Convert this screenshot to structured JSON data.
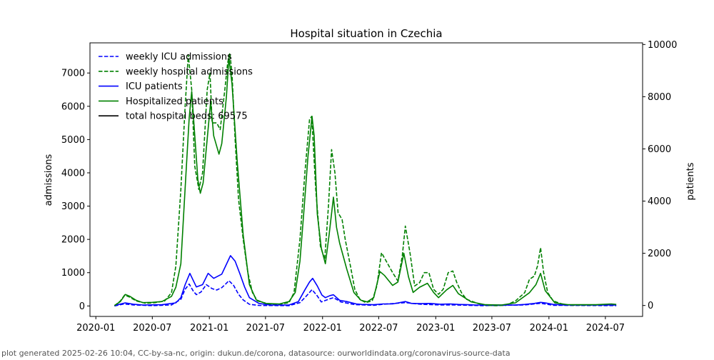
{
  "footer": "plot generated 2025-02-26 10:04, CC-by-sa-nc, origin: dukun.de/corona, datasource: ourworldindata.org/coronavirus-source-data",
  "chart_data": {
    "type": "line",
    "title": "Hospital situation in Czechia",
    "xlabel": "",
    "ylabel_left": "admissions",
    "ylabel_right": "patients",
    "xlim": [
      "2019-12-13",
      "2024-10-29"
    ],
    "ylim_left": [
      -315,
      7906
    ],
    "ylim_right": [
      -419,
      10063
    ],
    "grid": false,
    "legend_placement": "top-left",
    "x_ticks": [
      "2020-01",
      "2020-07",
      "2021-01",
      "2021-07",
      "2022-01",
      "2022-07",
      "2023-01",
      "2023-07",
      "2024-01",
      "2024-07"
    ],
    "y_ticks_left": [
      0,
      1000,
      2000,
      3000,
      4000,
      5000,
      6000,
      7000
    ],
    "y_ticks_right": [
      0,
      2000,
      4000,
      6000,
      8000,
      10000
    ],
    "legend_extra": {
      "name": "total hospital beds: 69575",
      "color": "#000000",
      "style": "solid"
    },
    "series": [
      {
        "name": "weekly ICU admissions",
        "axis": "left",
        "color": "#0000ff",
        "style": "dashed",
        "points": [
          [
            "2020-03-01",
            0
          ],
          [
            "2020-04-01",
            60
          ],
          [
            "2020-05-01",
            30
          ],
          [
            "2020-07-01",
            10
          ],
          [
            "2020-09-01",
            30
          ],
          [
            "2020-10-01",
            200
          ],
          [
            "2020-10-15",
            500
          ],
          [
            "2020-10-28",
            660
          ],
          [
            "2020-11-10",
            450
          ],
          [
            "2020-11-20",
            340
          ],
          [
            "2020-12-05",
            420
          ],
          [
            "2020-12-22",
            640
          ],
          [
            "2021-01-10",
            520
          ],
          [
            "2021-01-25",
            480
          ],
          [
            "2021-02-10",
            550
          ],
          [
            "2021-02-25",
            680
          ],
          [
            "2021-03-05",
            760
          ],
          [
            "2021-03-20",
            620
          ],
          [
            "2021-04-05",
            350
          ],
          [
            "2021-04-20",
            180
          ],
          [
            "2021-05-10",
            50
          ],
          [
            "2021-06-10",
            15
          ],
          [
            "2021-09-15",
            10
          ],
          [
            "2021-10-20",
            100
          ],
          [
            "2021-11-10",
            300
          ],
          [
            "2021-11-28",
            490
          ],
          [
            "2021-12-15",
            300
          ],
          [
            "2021-12-28",
            120
          ],
          [
            "2022-01-20",
            200
          ],
          [
            "2022-02-05",
            250
          ],
          [
            "2022-03-01",
            120
          ],
          [
            "2022-04-15",
            40
          ],
          [
            "2022-06-15",
            20
          ],
          [
            "2022-07-15",
            50
          ],
          [
            "2022-09-25",
            100
          ],
          [
            "2022-11-15",
            50
          ],
          [
            "2023-01-15",
            30
          ],
          [
            "2023-03-01",
            30
          ],
          [
            "2023-06-01",
            10
          ],
          [
            "2023-10-15",
            30
          ],
          [
            "2023-12-05",
            80
          ],
          [
            "2024-01-15",
            20
          ],
          [
            "2024-08-05",
            10
          ]
        ]
      },
      {
        "name": "weekly hospital admissions",
        "axis": "left",
        "color": "#008000",
        "style": "dashed",
        "points": [
          [
            "2020-03-01",
            0
          ],
          [
            "2020-03-20",
            150
          ],
          [
            "2020-04-03",
            330
          ],
          [
            "2020-04-20",
            260
          ],
          [
            "2020-05-10",
            150
          ],
          [
            "2020-06-10",
            80
          ],
          [
            "2020-07-10",
            100
          ],
          [
            "2020-08-10",
            150
          ],
          [
            "2020-09-01",
            400
          ],
          [
            "2020-09-15",
            1200
          ],
          [
            "2020-10-01",
            3500
          ],
          [
            "2020-10-15",
            6000
          ],
          [
            "2020-10-25",
            7550
          ],
          [
            "2020-11-05",
            6500
          ],
          [
            "2020-11-15",
            4200
          ],
          [
            "2020-11-28",
            3500
          ],
          [
            "2020-12-10",
            4000
          ],
          [
            "2020-12-25",
            6500
          ],
          [
            "2021-01-03",
            7000
          ],
          [
            "2021-01-10",
            5500
          ],
          [
            "2021-01-25",
            5500
          ],
          [
            "2021-02-05",
            5300
          ],
          [
            "2021-02-20",
            6500
          ],
          [
            "2021-03-01",
            7300
          ],
          [
            "2021-03-08",
            7600
          ],
          [
            "2021-03-15",
            7000
          ],
          [
            "2021-03-25",
            5000
          ],
          [
            "2021-04-05",
            3200
          ],
          [
            "2021-04-20",
            2000
          ],
          [
            "2021-05-05",
            1000
          ],
          [
            "2021-05-20",
            400
          ],
          [
            "2021-06-05",
            150
          ],
          [
            "2021-07-15",
            50
          ],
          [
            "2021-08-15",
            50
          ],
          [
            "2021-09-15",
            100
          ],
          [
            "2021-10-01",
            400
          ],
          [
            "2021-10-20",
            2000
          ],
          [
            "2021-11-05",
            4000
          ],
          [
            "2021-11-20",
            5600
          ],
          [
            "2021-11-27",
            5700
          ],
          [
            "2021-12-10",
            3500
          ],
          [
            "2021-12-25",
            1800
          ],
          [
            "2022-01-08",
            1400
          ],
          [
            "2022-01-20",
            3000
          ],
          [
            "2022-01-30",
            4700
          ],
          [
            "2022-02-10",
            4000
          ],
          [
            "2022-02-20",
            2800
          ],
          [
            "2022-03-05",
            2600
          ],
          [
            "2022-03-15",
            2000
          ],
          [
            "2022-04-01",
            1200
          ],
          [
            "2022-04-15",
            500
          ],
          [
            "2022-05-01",
            200
          ],
          [
            "2022-05-20",
            100
          ],
          [
            "2022-06-10",
            150
          ],
          [
            "2022-06-25",
            600
          ],
          [
            "2022-07-10",
            1600
          ],
          [
            "2022-07-25",
            1350
          ],
          [
            "2022-08-15",
            1000
          ],
          [
            "2022-09-01",
            750
          ],
          [
            "2022-09-15",
            1500
          ],
          [
            "2022-09-25",
            2400
          ],
          [
            "2022-10-10",
            1600
          ],
          [
            "2022-10-25",
            600
          ],
          [
            "2022-11-10",
            700
          ],
          [
            "2022-11-25",
            1000
          ],
          [
            "2022-12-10",
            1000
          ],
          [
            "2022-12-25",
            500
          ],
          [
            "2023-01-10",
            350
          ],
          [
            "2023-01-25",
            500
          ],
          [
            "2023-02-10",
            1000
          ],
          [
            "2023-02-25",
            1050
          ],
          [
            "2023-03-10",
            700
          ],
          [
            "2023-03-25",
            400
          ],
          [
            "2023-04-10",
            200
          ],
          [
            "2023-05-15",
            80
          ],
          [
            "2023-06-10",
            20
          ],
          [
            "2023-07-15",
            10
          ],
          [
            "2023-08-15",
            20
          ],
          [
            "2023-09-15",
            150
          ],
          [
            "2023-10-15",
            400
          ],
          [
            "2023-10-30",
            800
          ],
          [
            "2023-11-15",
            900
          ],
          [
            "2023-11-25",
            1200
          ],
          [
            "2023-12-05",
            1750
          ],
          [
            "2023-12-15",
            1000
          ],
          [
            "2023-12-28",
            400
          ],
          [
            "2024-01-15",
            150
          ],
          [
            "2024-02-15",
            50
          ],
          [
            "2024-03-15",
            20
          ],
          [
            "2024-07-15",
            30
          ],
          [
            "2024-08-05",
            20
          ]
        ]
      },
      {
        "name": "ICU patients",
        "axis": "right",
        "color": "#0000ff",
        "style": "solid",
        "points": [
          [
            "2020-03-01",
            0
          ],
          [
            "2020-04-05",
            100
          ],
          [
            "2020-05-01",
            50
          ],
          [
            "2020-06-01",
            20
          ],
          [
            "2020-08-01",
            30
          ],
          [
            "2020-09-15",
            100
          ],
          [
            "2020-10-01",
            300
          ],
          [
            "2020-10-15",
            800
          ],
          [
            "2020-10-30",
            1230
          ],
          [
            "2020-11-20",
            710
          ],
          [
            "2020-12-10",
            800
          ],
          [
            "2020-12-28",
            1230
          ],
          [
            "2021-01-15",
            1040
          ],
          [
            "2021-02-10",
            1200
          ],
          [
            "2021-03-10",
            1910
          ],
          [
            "2021-03-25",
            1700
          ],
          [
            "2021-04-10",
            1200
          ],
          [
            "2021-04-25",
            700
          ],
          [
            "2021-05-10",
            300
          ],
          [
            "2021-06-10",
            80
          ],
          [
            "2021-07-15",
            20
          ],
          [
            "2021-09-15",
            20
          ],
          [
            "2021-10-15",
            150
          ],
          [
            "2021-11-05",
            600
          ],
          [
            "2021-11-20",
            900
          ],
          [
            "2021-11-30",
            1040
          ],
          [
            "2021-12-15",
            750
          ],
          [
            "2021-12-30",
            400
          ],
          [
            "2022-01-10",
            300
          ],
          [
            "2022-01-25",
            380
          ],
          [
            "2022-02-05",
            410
          ],
          [
            "2022-02-25",
            200
          ],
          [
            "2022-03-20",
            150
          ],
          [
            "2022-04-20",
            60
          ],
          [
            "2022-05-07",
            40
          ],
          [
            "2022-06-15",
            30
          ],
          [
            "2022-07-15",
            60
          ],
          [
            "2022-08-15",
            60
          ],
          [
            "2022-09-25",
            150
          ],
          [
            "2022-10-15",
            80
          ],
          [
            "2022-11-15",
            70
          ],
          [
            "2022-12-15",
            80
          ],
          [
            "2023-01-15",
            50
          ],
          [
            "2023-02-15",
            60
          ],
          [
            "2023-03-15",
            40
          ],
          [
            "2023-04-15",
            30
          ],
          [
            "2023-05-10",
            20
          ],
          [
            "2023-09-15",
            15
          ],
          [
            "2023-10-15",
            40
          ],
          [
            "2023-11-15",
            80
          ],
          [
            "2023-12-05",
            120
          ],
          [
            "2023-12-20",
            100
          ],
          [
            "2024-01-15",
            40
          ],
          [
            "2024-02-15",
            20
          ],
          [
            "2024-08-05",
            20
          ]
        ]
      },
      {
        "name": "Hospitalized patients",
        "axis": "right",
        "color": "#008000",
        "style": "solid",
        "points": [
          [
            "2020-03-01",
            0
          ],
          [
            "2020-03-20",
            150
          ],
          [
            "2020-04-05",
            420
          ],
          [
            "2020-04-20",
            350
          ],
          [
            "2020-05-10",
            200
          ],
          [
            "2020-06-01",
            110
          ],
          [
            "2020-07-01",
            120
          ],
          [
            "2020-08-01",
            150
          ],
          [
            "2020-09-01",
            350
          ],
          [
            "2020-09-15",
            700
          ],
          [
            "2020-10-01",
            1600
          ],
          [
            "2020-10-15",
            4500
          ],
          [
            "2020-10-28",
            7200
          ],
          [
            "2020-11-05",
            8200
          ],
          [
            "2020-11-15",
            6500
          ],
          [
            "2020-11-25",
            4800
          ],
          [
            "2020-12-03",
            4300
          ],
          [
            "2020-12-12",
            4700
          ],
          [
            "2020-12-22",
            6000
          ],
          [
            "2021-01-05",
            7800
          ],
          [
            "2021-01-15",
            6500
          ],
          [
            "2021-02-01",
            5800
          ],
          [
            "2021-02-10",
            6200
          ],
          [
            "2021-02-25",
            8000
          ],
          [
            "2021-03-05",
            9500
          ],
          [
            "2021-03-15",
            8500
          ],
          [
            "2021-04-01",
            5500
          ],
          [
            "2021-04-20",
            2700
          ],
          [
            "2021-05-10",
            800
          ],
          [
            "2021-06-01",
            220
          ],
          [
            "2021-07-01",
            80
          ],
          [
            "2021-08-15",
            60
          ],
          [
            "2021-09-15",
            150
          ],
          [
            "2021-10-05",
            500
          ],
          [
            "2021-10-20",
            1700
          ],
          [
            "2021-11-01",
            3500
          ],
          [
            "2021-11-15",
            5700
          ],
          [
            "2021-11-28",
            7250
          ],
          [
            "2021-12-05",
            6500
          ],
          [
            "2021-12-15",
            3500
          ],
          [
            "2021-12-28",
            2200
          ],
          [
            "2022-01-10",
            1600
          ],
          [
            "2022-01-22",
            2700
          ],
          [
            "2022-02-05",
            4150
          ],
          [
            "2022-02-15",
            3000
          ],
          [
            "2022-02-25",
            2400
          ],
          [
            "2022-03-20",
            1400
          ],
          [
            "2022-04-12",
            500
          ],
          [
            "2022-05-05",
            200
          ],
          [
            "2022-05-25",
            140
          ],
          [
            "2022-06-15",
            300
          ],
          [
            "2022-07-05",
            1300
          ],
          [
            "2022-07-20",
            1150
          ],
          [
            "2022-08-15",
            770
          ],
          [
            "2022-09-01",
            900
          ],
          [
            "2022-09-20",
            2000
          ],
          [
            "2022-10-05",
            1100
          ],
          [
            "2022-10-20",
            500
          ],
          [
            "2022-11-10",
            700
          ],
          [
            "2022-12-05",
            850
          ],
          [
            "2022-12-25",
            500
          ],
          [
            "2023-01-10",
            300
          ],
          [
            "2023-02-05",
            600
          ],
          [
            "2023-02-25",
            770
          ],
          [
            "2023-03-15",
            450
          ],
          [
            "2023-04-25",
            140
          ],
          [
            "2023-06-10",
            30
          ],
          [
            "2023-08-01",
            20
          ],
          [
            "2023-09-15",
            100
          ],
          [
            "2023-10-30",
            490
          ],
          [
            "2023-11-20",
            800
          ],
          [
            "2023-12-05",
            1230
          ],
          [
            "2023-12-20",
            570
          ],
          [
            "2024-01-20",
            100
          ],
          [
            "2024-03-01",
            30
          ],
          [
            "2024-06-01",
            30
          ],
          [
            "2024-07-20",
            60
          ],
          [
            "2024-08-05",
            40
          ]
        ]
      }
    ]
  }
}
